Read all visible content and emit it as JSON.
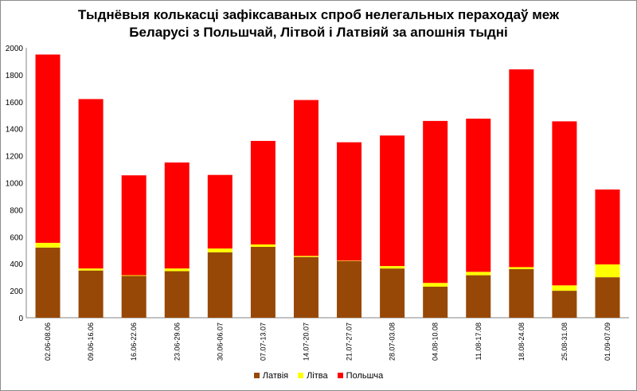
{
  "chart_data": {
    "type": "bar",
    "stacked": true,
    "title": [
      "Тыднёвыя колькасці зафіксаваных спроб нелегальных пераходаў меж",
      "Беларусі з Польшчай, Літвой і Латвіяй за апошнія тыдні"
    ],
    "xlabel": "",
    "ylabel": "",
    "ylim": [
      0,
      2000
    ],
    "yticks": [
      "0",
      "200",
      "400",
      "600",
      "800",
      "1000",
      "1200",
      "1400",
      "1600",
      "1800",
      "2000"
    ],
    "grid": false,
    "legend_position": "bottom",
    "categories": [
      "02.06-08.06",
      "09.06-16.06",
      "16.06-22.06",
      "23.06-29.06",
      "30.06-06.07",
      "07.07-13.07",
      "14.07-20.07",
      "21.07-27.07",
      "28.07-03.08",
      "04.08-10.08",
      "11.08-17.08",
      "18.08-24.08",
      "25.08-31.08",
      "01.09-07.09"
    ],
    "series": [
      {
        "name": "Латвія",
        "color": "#974806",
        "values": [
          520,
          350,
          310,
          345,
          485,
          525,
          450,
          420,
          365,
          230,
          315,
          360,
          200,
          300
        ]
      },
      {
        "name": "Літва",
        "color": "#ffff00",
        "values": [
          35,
          15,
          5,
          20,
          28,
          18,
          8,
          3,
          18,
          28,
          25,
          15,
          40,
          95
        ]
      },
      {
        "name": "Польшча",
        "color": "#ff0000",
        "values": [
          1395,
          1255,
          740,
          785,
          545,
          767,
          1155,
          877,
          967,
          1200,
          1135,
          1465,
          1215,
          555
        ]
      }
    ]
  }
}
